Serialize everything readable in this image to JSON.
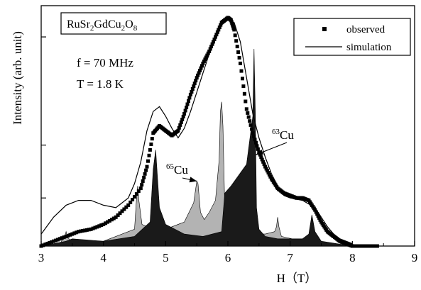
{
  "chart_data": {
    "type": "line",
    "title": "",
    "xlabel": "H（T）",
    "ylabel": "Intensity (arb. unit)",
    "xlim": [
      3,
      9
    ],
    "ylim": [
      0,
      1.0
    ],
    "x_ticks": [
      3,
      4,
      5,
      6,
      7,
      8,
      9
    ],
    "x_tick_labels": [
      "3",
      "4",
      "5",
      "6",
      "7",
      "8",
      "9"
    ],
    "y_tick_values": [
      0.2,
      0.42,
      0.87
    ],
    "grid": false,
    "legend": {
      "placement": "top-right",
      "entries": [
        {
          "label": "observed",
          "marker": "square"
        },
        {
          "label": "simulation",
          "marker": "line"
        }
      ]
    },
    "sample_box": {
      "formula": "RuSr",
      "s1": "2",
      "mid": "GdCu",
      "s2": "2",
      "mid2": "O",
      "s3": "8"
    },
    "conditions": {
      "freq": "f = 70 MHz",
      "temp": "T = 1.8 K"
    },
    "annotations": [
      {
        "sup": "65",
        "text": "Cu",
        "arrow_to": [
          5.5,
          0.27
        ]
      },
      {
        "sup": "63",
        "text": "Cu",
        "arrow_to": [
          6.45,
          0.38
        ]
      }
    ],
    "series": [
      {
        "name": "observed",
        "style": "square-markers",
        "x": [
          3.0,
          3.2,
          3.4,
          3.6,
          3.8,
          4.0,
          4.2,
          4.4,
          4.6,
          4.7,
          4.8,
          4.9,
          5.0,
          5.1,
          5.2,
          5.3,
          5.4,
          5.5,
          5.6,
          5.7,
          5.8,
          5.9,
          6.0,
          6.05,
          6.1,
          6.2,
          6.3,
          6.4,
          6.5,
          6.6,
          6.7,
          6.8,
          6.9,
          7.0,
          7.1,
          7.2,
          7.3,
          7.4,
          7.5,
          7.6,
          7.7,
          7.8,
          7.9,
          8.0,
          8.2,
          8.4
        ],
        "y": [
          0.0,
          0.02,
          0.04,
          0.06,
          0.07,
          0.09,
          0.12,
          0.17,
          0.24,
          0.33,
          0.47,
          0.5,
          0.48,
          0.46,
          0.48,
          0.55,
          0.63,
          0.7,
          0.76,
          0.81,
          0.87,
          0.93,
          0.95,
          0.94,
          0.9,
          0.76,
          0.57,
          0.47,
          0.39,
          0.33,
          0.28,
          0.24,
          0.22,
          0.21,
          0.2,
          0.2,
          0.19,
          0.15,
          0.1,
          0.06,
          0.04,
          0.02,
          0.01,
          0.0,
          0.0,
          0.0
        ]
      },
      {
        "name": "simulation",
        "style": "thin-line",
        "x": [
          3.0,
          3.2,
          3.4,
          3.6,
          3.8,
          4.0,
          4.2,
          4.4,
          4.5,
          4.6,
          4.7,
          4.8,
          4.9,
          5.0,
          5.1,
          5.2,
          5.3,
          5.4,
          5.5,
          5.6,
          5.7,
          5.8,
          5.9,
          6.0,
          6.1,
          6.2,
          6.3,
          6.4,
          6.5,
          6.6,
          6.7,
          6.8,
          6.9,
          7.0,
          7.2,
          7.4,
          7.5,
          7.6,
          7.7,
          7.8,
          8.0
        ],
        "y": [
          0.05,
          0.12,
          0.17,
          0.19,
          0.19,
          0.17,
          0.16,
          0.2,
          0.26,
          0.35,
          0.48,
          0.56,
          0.58,
          0.54,
          0.49,
          0.45,
          0.49,
          0.56,
          0.64,
          0.72,
          0.8,
          0.86,
          0.92,
          0.94,
          0.93,
          0.85,
          0.7,
          0.55,
          0.45,
          0.37,
          0.3,
          0.25,
          0.21,
          0.2,
          0.19,
          0.16,
          0.12,
          0.08,
          0.05,
          0.03,
          0.01
        ]
      },
      {
        "name": "65Cu",
        "style": "light-filled",
        "x": [
          3.0,
          3.3,
          3.38,
          3.4,
          3.42,
          3.5,
          4.0,
          4.5,
          4.53,
          4.55,
          4.57,
          4.62,
          4.8,
          5.0,
          5.3,
          5.45,
          5.5,
          5.52,
          5.56,
          5.62,
          5.7,
          5.8,
          5.86,
          5.88,
          5.9,
          5.92,
          5.95,
          6.0,
          6.3,
          6.6,
          6.75,
          6.78,
          6.8,
          6.82,
          6.86,
          7.2,
          8.0
        ],
        "y": [
          0.0,
          0.01,
          0.04,
          0.06,
          0.04,
          0.01,
          0.02,
          0.07,
          0.19,
          0.25,
          0.19,
          0.09,
          0.07,
          0.07,
          0.1,
          0.18,
          0.27,
          0.26,
          0.14,
          0.11,
          0.14,
          0.19,
          0.36,
          0.56,
          0.6,
          0.5,
          0.16,
          0.06,
          0.05,
          0.05,
          0.06,
          0.08,
          0.12,
          0.08,
          0.04,
          0.02,
          0.0
        ]
      },
      {
        "name": "63Cu",
        "style": "dark-filled",
        "x": [
          3.0,
          3.4,
          3.5,
          4.0,
          4.5,
          4.75,
          4.8,
          4.84,
          4.9,
          5.0,
          5.3,
          5.6,
          5.9,
          5.95,
          6.05,
          6.3,
          6.4,
          6.42,
          6.44,
          6.46,
          6.5,
          6.6,
          6.8,
          7.2,
          7.3,
          7.35,
          7.4,
          7.5,
          8.0
        ],
        "y": [
          0.0,
          0.02,
          0.03,
          0.02,
          0.04,
          0.1,
          0.32,
          0.4,
          0.16,
          0.09,
          0.05,
          0.04,
          0.06,
          0.22,
          0.25,
          0.34,
          0.54,
          0.82,
          0.56,
          0.16,
          0.07,
          0.04,
          0.03,
          0.03,
          0.05,
          0.13,
          0.06,
          0.02,
          0.0
        ]
      }
    ]
  }
}
